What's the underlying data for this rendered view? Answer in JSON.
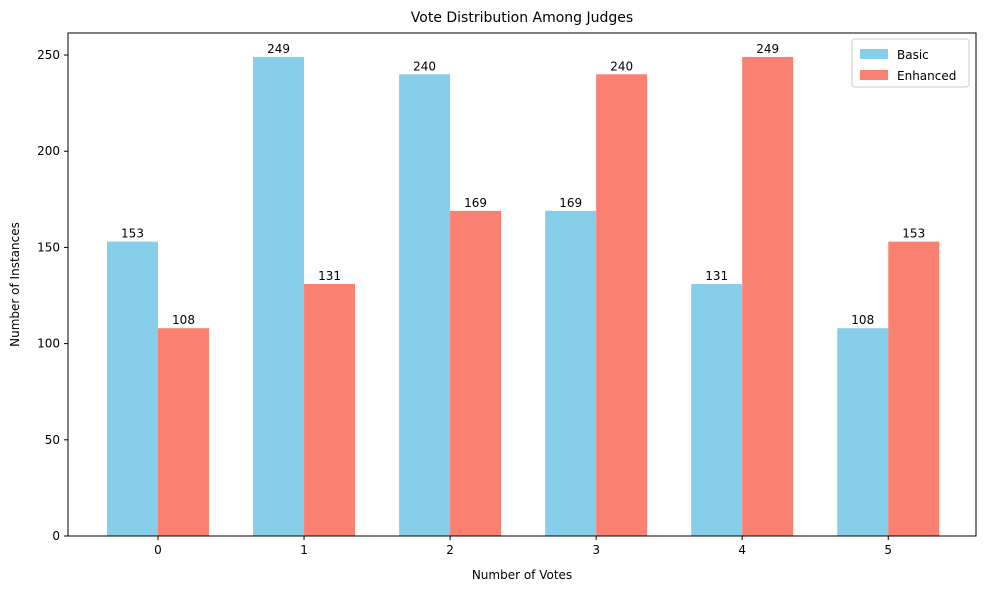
{
  "chart_data": {
    "type": "bar",
    "title": "Vote Distribution Among Judges",
    "xlabel": "Number of Votes",
    "ylabel": "Number of Instances",
    "categories": [
      "0",
      "1",
      "2",
      "3",
      "4",
      "5"
    ],
    "series": [
      {
        "name": "Basic",
        "values": [
          153,
          249,
          240,
          169,
          131,
          108
        ],
        "color": "#87CEEB"
      },
      {
        "name": "Enhanced",
        "values": [
          108,
          131,
          169,
          240,
          249,
          153
        ],
        "color": "#FA8072"
      }
    ],
    "ylim": [
      0,
      261.45
    ],
    "yticks": [
      0,
      50,
      100,
      150,
      200,
      250
    ],
    "grid": false,
    "legend_position": "top-right",
    "data_labels": true
  }
}
